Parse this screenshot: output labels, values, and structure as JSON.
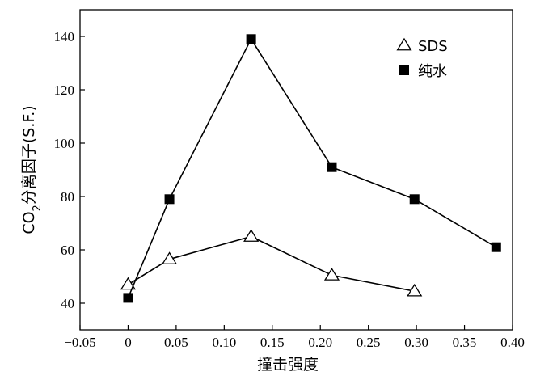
{
  "chart_data": {
    "type": "line",
    "xlabel": "撞击强度",
    "ylabel_parts": {
      "pre": "CO",
      "sub": "2",
      "post": "分离因子(S.F.)"
    },
    "xlim": [
      -0.05,
      0.4
    ],
    "ylim": [
      30,
      150
    ],
    "x_ticks": [
      -0.05,
      0,
      0.05,
      0.1,
      0.15,
      0.2,
      0.25,
      0.3,
      0.35,
      0.4
    ],
    "x_tick_labels": [
      "−0.05",
      "0",
      "0.05",
      "0.10",
      "0.15",
      "0.20",
      "0.25",
      "0.30",
      "0.35",
      "0.40"
    ],
    "y_ticks": [
      40,
      60,
      80,
      100,
      120,
      140
    ],
    "y_tick_labels": [
      "40",
      "60",
      "80",
      "100",
      "120",
      "140"
    ],
    "legend_position": "top-right",
    "series": [
      {
        "name": "SDS",
        "marker": "open-triangle",
        "color": "#000000",
        "x": [
          0,
          0.043,
          0.128,
          0.212,
          0.298
        ],
        "y": [
          47,
          56.5,
          65,
          50.5,
          44.5
        ]
      },
      {
        "name": "纯水",
        "marker": "filled-square",
        "color": "#000000",
        "x": [
          0,
          0.043,
          0.128,
          0.212,
          0.298,
          0.383
        ],
        "y": [
          42,
          79,
          139,
          91,
          79,
          61
        ]
      }
    ]
  }
}
